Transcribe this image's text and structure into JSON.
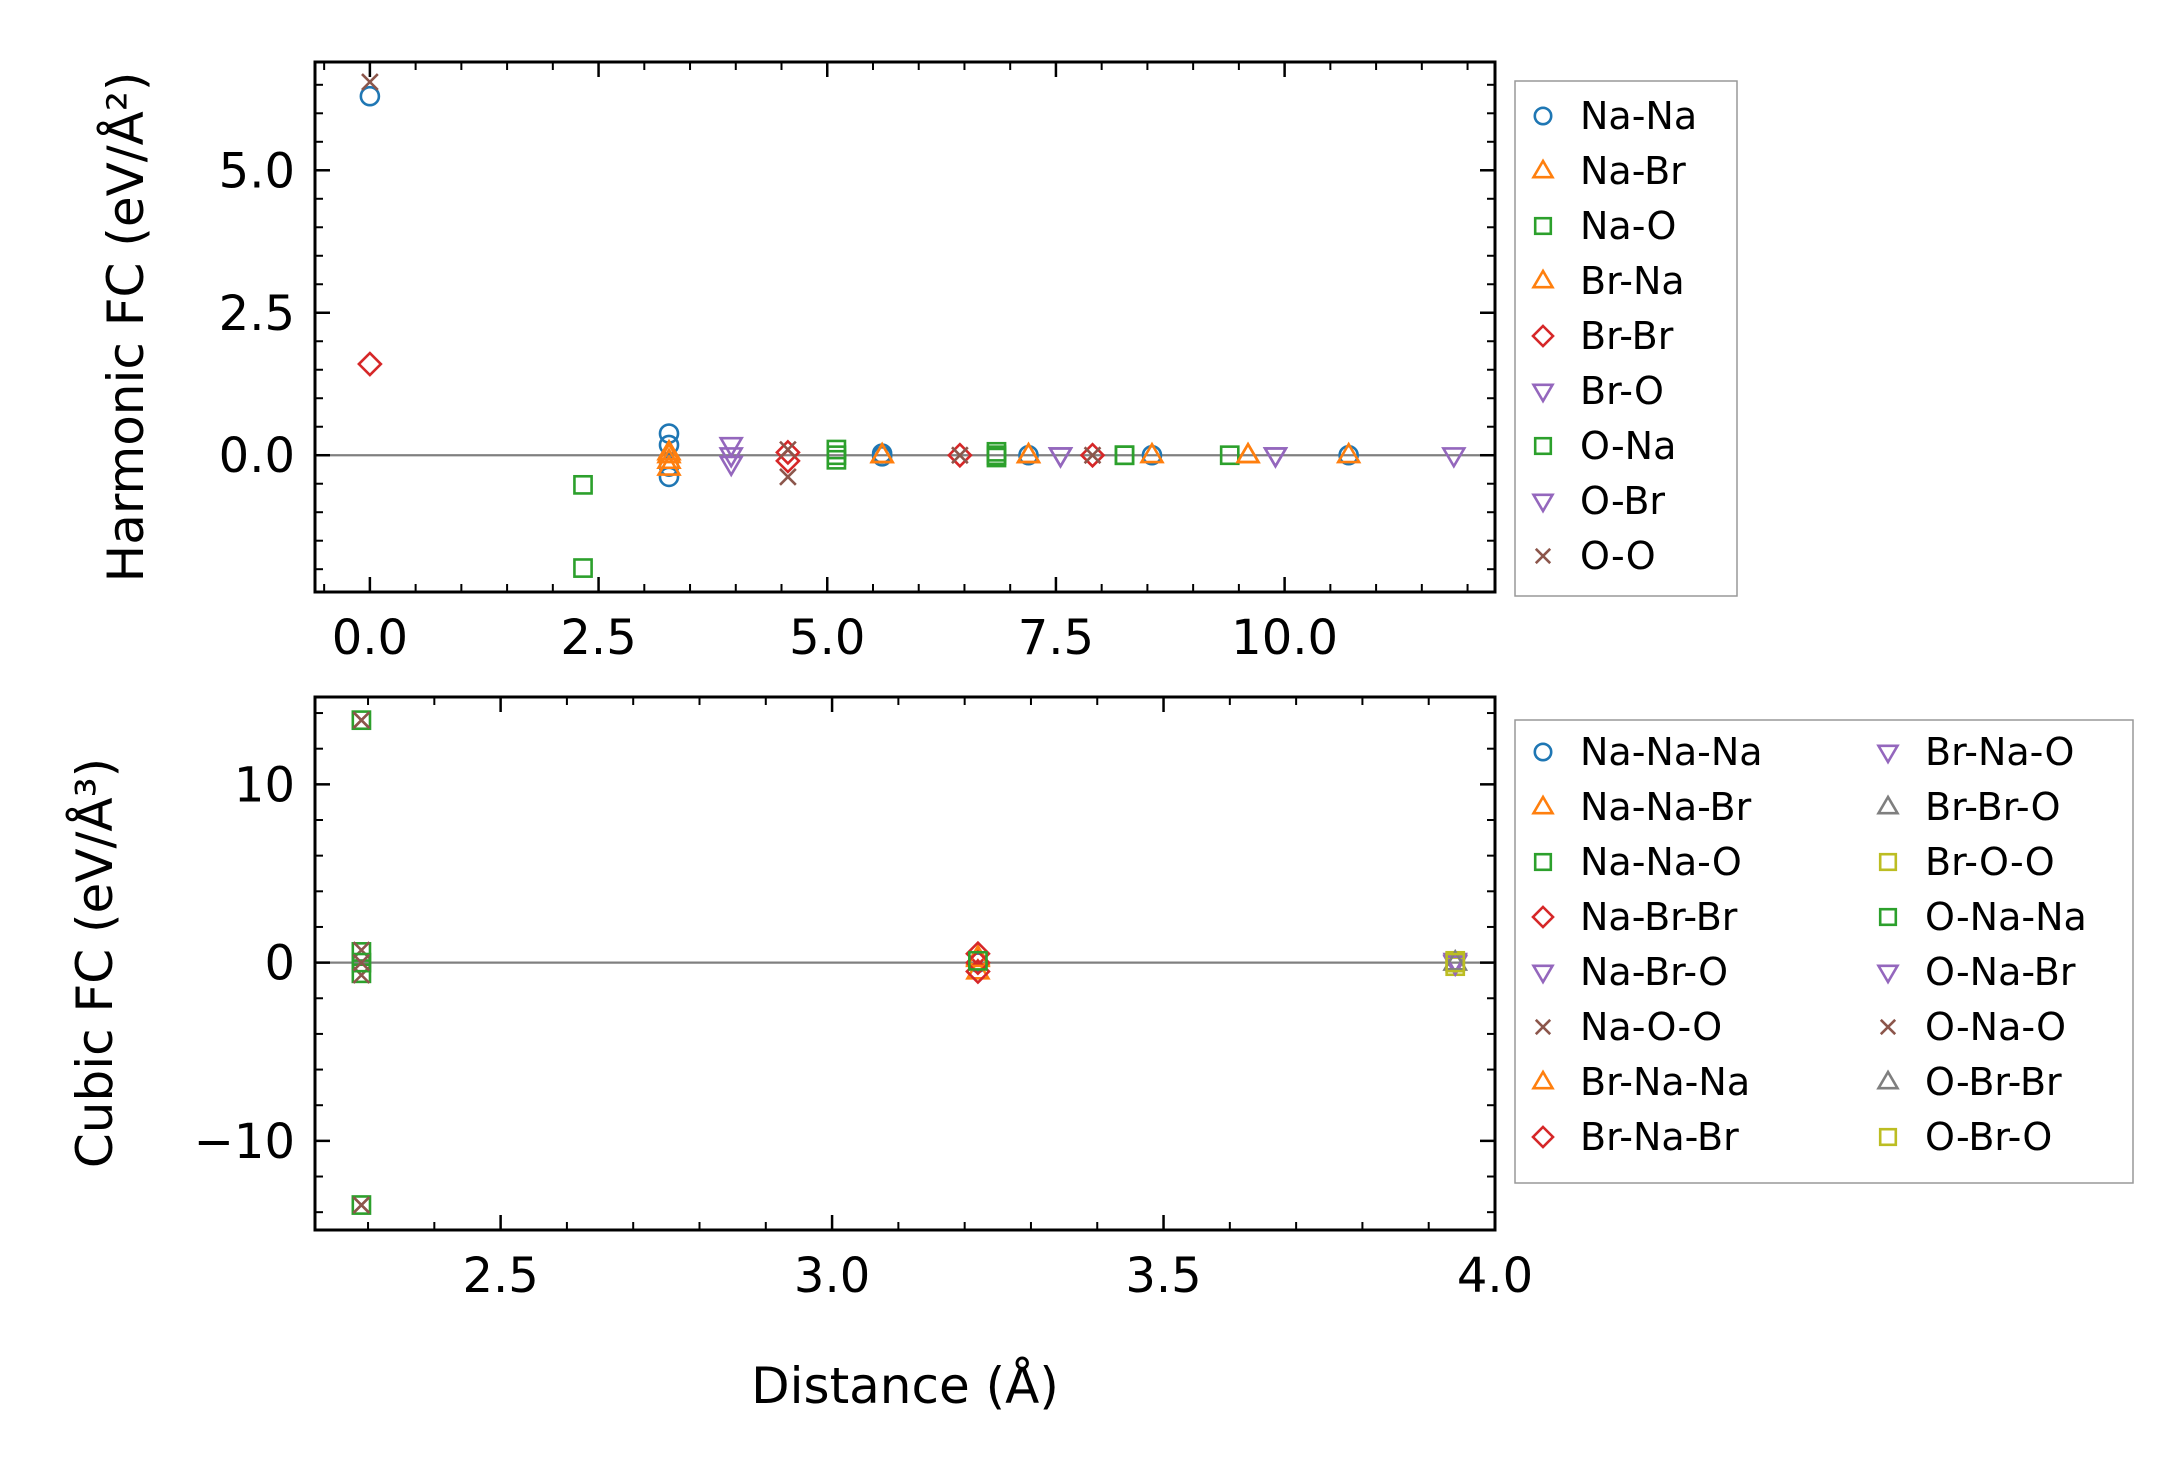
{
  "chart_data": [
    {
      "type": "scatter",
      "title": "",
      "xlabel": "",
      "ylabel": "Harmonic FC (eV/Å²)",
      "xlim": [
        -0.6,
        12.3
      ],
      "ylim": [
        -2.4,
        6.9
      ],
      "xticks": [
        0.0,
        2.5,
        5.0,
        7.5,
        10.0
      ],
      "xtick_labels": [
        "0.0",
        "2.5",
        "5.0",
        "7.5",
        "10.0"
      ],
      "yticks": [
        0.0,
        2.5,
        5.0
      ],
      "ytick_labels": [
        "0.0",
        "2.5",
        "5.0"
      ],
      "zero_line": true,
      "legend_location": "outside-right",
      "series": [
        {
          "name": "Na-Na",
          "marker": "circle",
          "color": "#1f77b4",
          "points": [
            [
              0.0,
              6.3
            ],
            [
              3.27,
              0.38
            ],
            [
              3.27,
              0.18
            ],
            [
              3.27,
              -0.2
            ],
            [
              3.27,
              -0.38
            ],
            [
              5.6,
              0.03
            ],
            [
              5.6,
              -0.02
            ],
            [
              7.2,
              0.0
            ],
            [
              8.55,
              0.0
            ],
            [
              10.7,
              0.0
            ]
          ]
        },
        {
          "name": "Na-Br",
          "marker": "triangle-up",
          "color": "#ff7f0e",
          "points": [
            [
              3.27,
              0.05
            ],
            [
              3.27,
              -0.1
            ],
            [
              3.27,
              -0.22
            ],
            [
              5.6,
              0.0
            ],
            [
              7.2,
              0.0
            ],
            [
              8.55,
              0.0
            ],
            [
              9.6,
              0.0
            ],
            [
              10.7,
              0.0
            ]
          ]
        },
        {
          "name": "Na-O",
          "marker": "square",
          "color": "#2ca02c",
          "points": [
            [
              2.33,
              -0.52
            ],
            [
              2.33,
              -1.98
            ],
            [
              5.1,
              0.1
            ],
            [
              5.1,
              -0.08
            ],
            [
              6.85,
              0.06
            ],
            [
              6.85,
              -0.04
            ],
            [
              8.25,
              0.0
            ],
            [
              9.4,
              0.0
            ]
          ]
        },
        {
          "name": "Br-Na",
          "marker": "triangle-up",
          "color": "#ff7f0e",
          "points": [
            [
              3.27,
              0.0
            ],
            [
              5.6,
              0.0
            ],
            [
              7.2,
              0.0
            ],
            [
              9.6,
              0.0
            ]
          ]
        },
        {
          "name": "Br-Br",
          "marker": "diamond",
          "color": "#d62728",
          "points": [
            [
              0.0,
              1.6
            ],
            [
              4.57,
              0.05
            ],
            [
              4.57,
              -0.1
            ],
            [
              6.45,
              0.0
            ],
            [
              7.9,
              0.0
            ]
          ]
        },
        {
          "name": "Br-O",
          "marker": "triangle-down",
          "color": "#9467bd",
          "points": [
            [
              3.95,
              0.18
            ],
            [
              3.95,
              -0.15
            ],
            [
              7.55,
              0.0
            ],
            [
              9.9,
              0.0
            ],
            [
              11.85,
              0.0
            ]
          ]
        },
        {
          "name": "O-Na",
          "marker": "square",
          "color": "#2ca02c",
          "points": [
            [
              5.1,
              0.0
            ],
            [
              6.85,
              0.0
            ],
            [
              8.25,
              0.0
            ]
          ]
        },
        {
          "name": "O-Br",
          "marker": "triangle-down",
          "color": "#9467bd",
          "points": [
            [
              3.95,
              0.0
            ],
            [
              7.55,
              0.0
            ],
            [
              9.9,
              0.0
            ]
          ]
        },
        {
          "name": "O-O",
          "marker": "x",
          "color": "#8c564b",
          "points": [
            [
              0.0,
              6.55
            ],
            [
              4.57,
              0.1
            ],
            [
              4.57,
              -0.38
            ],
            [
              6.45,
              0.0
            ],
            [
              7.9,
              0.0
            ]
          ]
        }
      ]
    },
    {
      "type": "scatter",
      "title": "",
      "xlabel": "Distance (Å)",
      "ylabel": "Cubic FC (eV/Å³)",
      "xlim": [
        2.22,
        4.0
      ],
      "ylim": [
        -15.0,
        14.9
      ],
      "xticks": [
        2.5,
        3.0,
        3.5,
        4.0
      ],
      "xtick_labels": [
        "2.5",
        "3.0",
        "3.5",
        "4.0"
      ],
      "yticks": [
        -10,
        0,
        10
      ],
      "ytick_labels": [
        "−10",
        "0",
        "10"
      ],
      "zero_line": true,
      "legend_location": "outside-right",
      "legend_columns": 2,
      "series": [
        {
          "name": "Na-Na-Na",
          "marker": "circle",
          "color": "#1f77b4",
          "points": [
            [
              3.22,
              0.0
            ]
          ]
        },
        {
          "name": "Na-Na-Br",
          "marker": "triangle-up",
          "color": "#ff7f0e",
          "points": [
            [
              3.22,
              -0.5
            ],
            [
              3.22,
              0.3
            ]
          ]
        },
        {
          "name": "Na-Na-O",
          "marker": "square",
          "color": "#2ca02c",
          "points": [
            [
              2.29,
              13.6
            ],
            [
              2.29,
              -13.6
            ],
            [
              2.29,
              0.6
            ],
            [
              2.29,
              -0.6
            ]
          ]
        },
        {
          "name": "Na-Br-Br",
          "marker": "diamond",
          "color": "#d62728",
          "points": [
            [
              3.22,
              0.5
            ],
            [
              3.22,
              -0.5
            ]
          ]
        },
        {
          "name": "Na-Br-O",
          "marker": "triangle-down",
          "color": "#9467bd",
          "points": [
            [
              3.94,
              0.0
            ]
          ]
        },
        {
          "name": "Na-O-O",
          "marker": "x",
          "color": "#8c564b",
          "points": [
            [
              2.29,
              13.6
            ],
            [
              2.29,
              -13.6
            ],
            [
              2.29,
              0.7
            ],
            [
              2.29,
              -0.7
            ]
          ]
        },
        {
          "name": "Br-Na-Na",
          "marker": "triangle-up",
          "color": "#ff7f0e",
          "points": [
            [
              3.22,
              0.2
            ]
          ]
        },
        {
          "name": "Br-Na-Br",
          "marker": "diamond",
          "color": "#d62728",
          "points": [
            [
              3.22,
              0.0
            ]
          ]
        },
        {
          "name": "Br-Na-O",
          "marker": "triangle-down",
          "color": "#9467bd",
          "points": [
            [
              3.94,
              0.1
            ]
          ]
        },
        {
          "name": "Br-Br-O",
          "marker": "triangle-up",
          "color": "#7f7f7f",
          "points": [
            [
              3.94,
              0.0
            ]
          ]
        },
        {
          "name": "Br-O-O",
          "marker": "square",
          "color": "#bcbd22",
          "points": [
            [
              3.94,
              0.1
            ],
            [
              3.94,
              -0.2
            ]
          ]
        },
        {
          "name": "O-Na-Na",
          "marker": "square",
          "color": "#2ca02c",
          "points": [
            [
              2.29,
              0.0
            ],
            [
              3.22,
              0.1
            ]
          ]
        },
        {
          "name": "O-Na-Br",
          "marker": "triangle-down",
          "color": "#9467bd",
          "points": [
            [
              3.94,
              -0.05
            ]
          ]
        },
        {
          "name": "O-Na-O",
          "marker": "x",
          "color": "#8c564b",
          "points": [
            [
              2.29,
              0.0
            ],
            [
              2.29,
              13.6
            ],
            [
              2.29,
              -13.6
            ]
          ]
        },
        {
          "name": "O-Br-Br",
          "marker": "triangle-up",
          "color": "#7f7f7f",
          "points": [
            [
              3.94,
              0.0
            ]
          ]
        },
        {
          "name": "O-Br-O",
          "marker": "square",
          "color": "#bcbd22",
          "points": [
            [
              3.94,
              0.0
            ]
          ]
        }
      ]
    }
  ]
}
